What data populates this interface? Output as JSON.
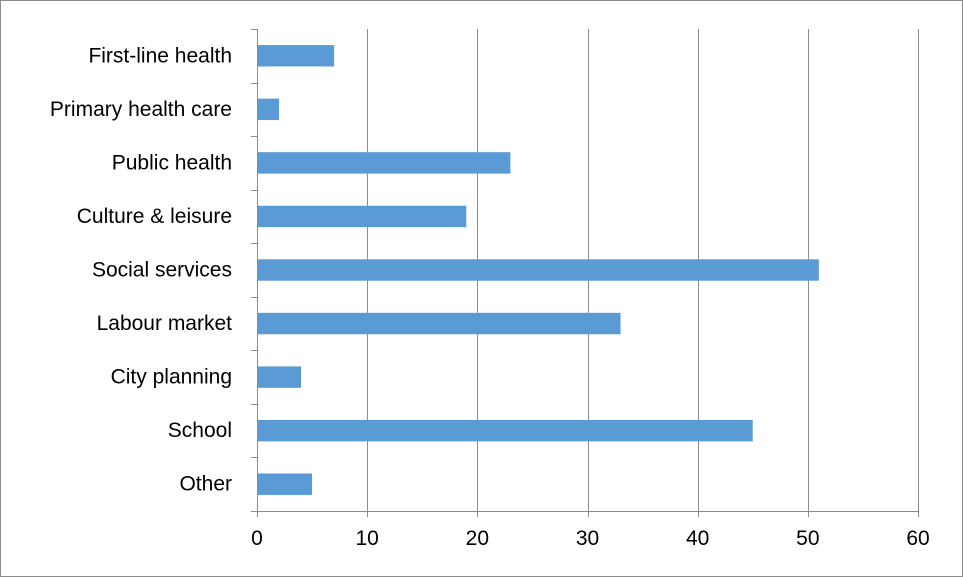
{
  "chart_data": {
    "type": "bar",
    "orientation": "horizontal",
    "title": "",
    "xlabel": "",
    "ylabel": "",
    "categories": [
      "First-line health",
      "Primary health care",
      "Public health",
      "Culture & leisure",
      "Social services",
      "Labour market",
      "City planning",
      "School",
      "Other"
    ],
    "values": [
      7,
      2,
      23,
      19,
      51,
      33,
      4,
      45,
      5
    ],
    "xlim": [
      0,
      60
    ],
    "xticks": [
      0,
      10,
      20,
      30,
      40,
      50,
      60
    ],
    "grid": "vertical major gridlines",
    "legend": "none",
    "bar_color": "#5b9bd5",
    "grid_color": "#8c8c8c",
    "axis_color": "#8c8c8c"
  }
}
